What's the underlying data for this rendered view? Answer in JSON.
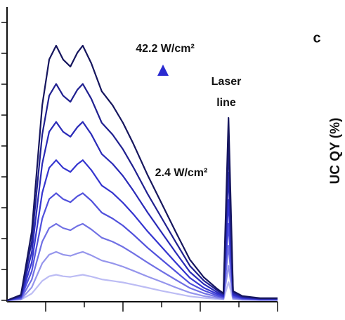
{
  "chart_data": {
    "type": "line",
    "x": [
      0,
      0.36,
      0.64,
      0.91,
      1.09,
      1.27,
      1.45,
      1.64,
      1.82,
      1.96,
      2.18,
      2.45,
      2.73,
      3.0,
      3.27,
      3.64,
      4.0,
      4.36,
      4.73,
      5.09,
      5.45,
      5.6,
      5.73,
      5.85,
      6.09,
      6.55,
      7.0
    ],
    "series": [
      {
        "color": "#16165e",
        "values": [
          0,
          0.18,
          2.23,
          6.32,
          7.8,
          8.25,
          7.8,
          7.57,
          8.02,
          8.25,
          7.68,
          6.77,
          6.32,
          5.75,
          5.07,
          4.05,
          3.14,
          2.23,
          1.32,
          0.75,
          0.36,
          0.23,
          5.91,
          0.3,
          0.14,
          0.07,
          0.07
        ]
      },
      {
        "color": "#202090",
        "values": [
          0,
          0.15,
          1.9,
          5.37,
          6.63,
          7.01,
          6.63,
          6.43,
          6.82,
          7.01,
          6.53,
          5.75,
          5.37,
          4.89,
          4.31,
          3.44,
          2.67,
          1.9,
          1.12,
          0.64,
          0.31,
          0.2,
          5.02,
          0.26,
          0.12,
          0.06,
          0.06
        ]
      },
      {
        "color": "#2a2ab8",
        "values": [
          0,
          0.13,
          1.56,
          4.42,
          5.46,
          5.78,
          5.46,
          5.3,
          5.61,
          5.78,
          5.38,
          4.74,
          4.42,
          4.03,
          3.55,
          2.84,
          2.2,
          1.56,
          0.92,
          0.53,
          0.25,
          0.16,
          4.14,
          0.21,
          0.1,
          0.05,
          0.05
        ]
      },
      {
        "color": "#3535d0",
        "values": [
          0,
          0.1,
          1.23,
          3.48,
          4.29,
          4.54,
          4.29,
          4.16,
          4.41,
          4.54,
          4.22,
          3.72,
          3.48,
          3.16,
          2.79,
          2.23,
          1.73,
          1.23,
          0.73,
          0.41,
          0.2,
          0.13,
          3.25,
          0.17,
          0.08,
          0.04,
          0.04
        ]
      },
      {
        "color": "#5050dc",
        "values": [
          0,
          0.08,
          0.94,
          2.65,
          3.28,
          3.47,
          3.28,
          3.18,
          3.37,
          3.47,
          3.23,
          2.84,
          2.65,
          2.42,
          2.13,
          1.7,
          1.32,
          0.94,
          0.55,
          0.32,
          0.15,
          0.1,
          2.48,
          0.13,
          0.06,
          0.03,
          0.03
        ]
      },
      {
        "color": "#7070e4",
        "values": [
          0,
          0.05,
          0.67,
          1.9,
          2.34,
          2.48,
          2.34,
          2.27,
          2.41,
          2.48,
          2.3,
          2.03,
          1.9,
          1.73,
          1.52,
          1.22,
          0.94,
          0.67,
          0.4,
          0.23,
          0.11,
          0.07,
          1.77,
          0.09,
          0.04,
          0.02,
          0.02
        ]
      },
      {
        "color": "#9595ec",
        "values": [
          0,
          0.03,
          0.42,
          1.2,
          1.48,
          1.57,
          1.48,
          1.44,
          1.52,
          1.57,
          1.46,
          1.29,
          1.2,
          1.09,
          0.96,
          0.77,
          0.6,
          0.42,
          0.25,
          0.14,
          0.07,
          0.04,
          1.12,
          0.06,
          0.03,
          0.01,
          0.01
        ]
      },
      {
        "color": "#bcbcf4",
        "values": [
          0,
          0.02,
          0.22,
          0.63,
          0.78,
          0.83,
          0.78,
          0.76,
          0.8,
          0.83,
          0.77,
          0.68,
          0.63,
          0.58,
          0.51,
          0.41,
          0.31,
          0.22,
          0.13,
          0.08,
          0.04,
          0.02,
          0.59,
          0.03,
          0.01,
          0.01,
          0.01
        ]
      }
    ],
    "xlim": [
      0,
      7
    ],
    "xticks": [
      1,
      2,
      3,
      4,
      5,
      6,
      7
    ],
    "ylim": [
      0,
      9.5
    ],
    "yticks": [
      0,
      1,
      2,
      3,
      4,
      5,
      6,
      7,
      8,
      9
    ],
    "annotations": [
      "42.2 W/cm²",
      "2.4 W/cm²",
      "Laser",
      "line"
    ]
  },
  "panel_label": "c",
  "neighbor_axis_label": "UC QY (%)"
}
